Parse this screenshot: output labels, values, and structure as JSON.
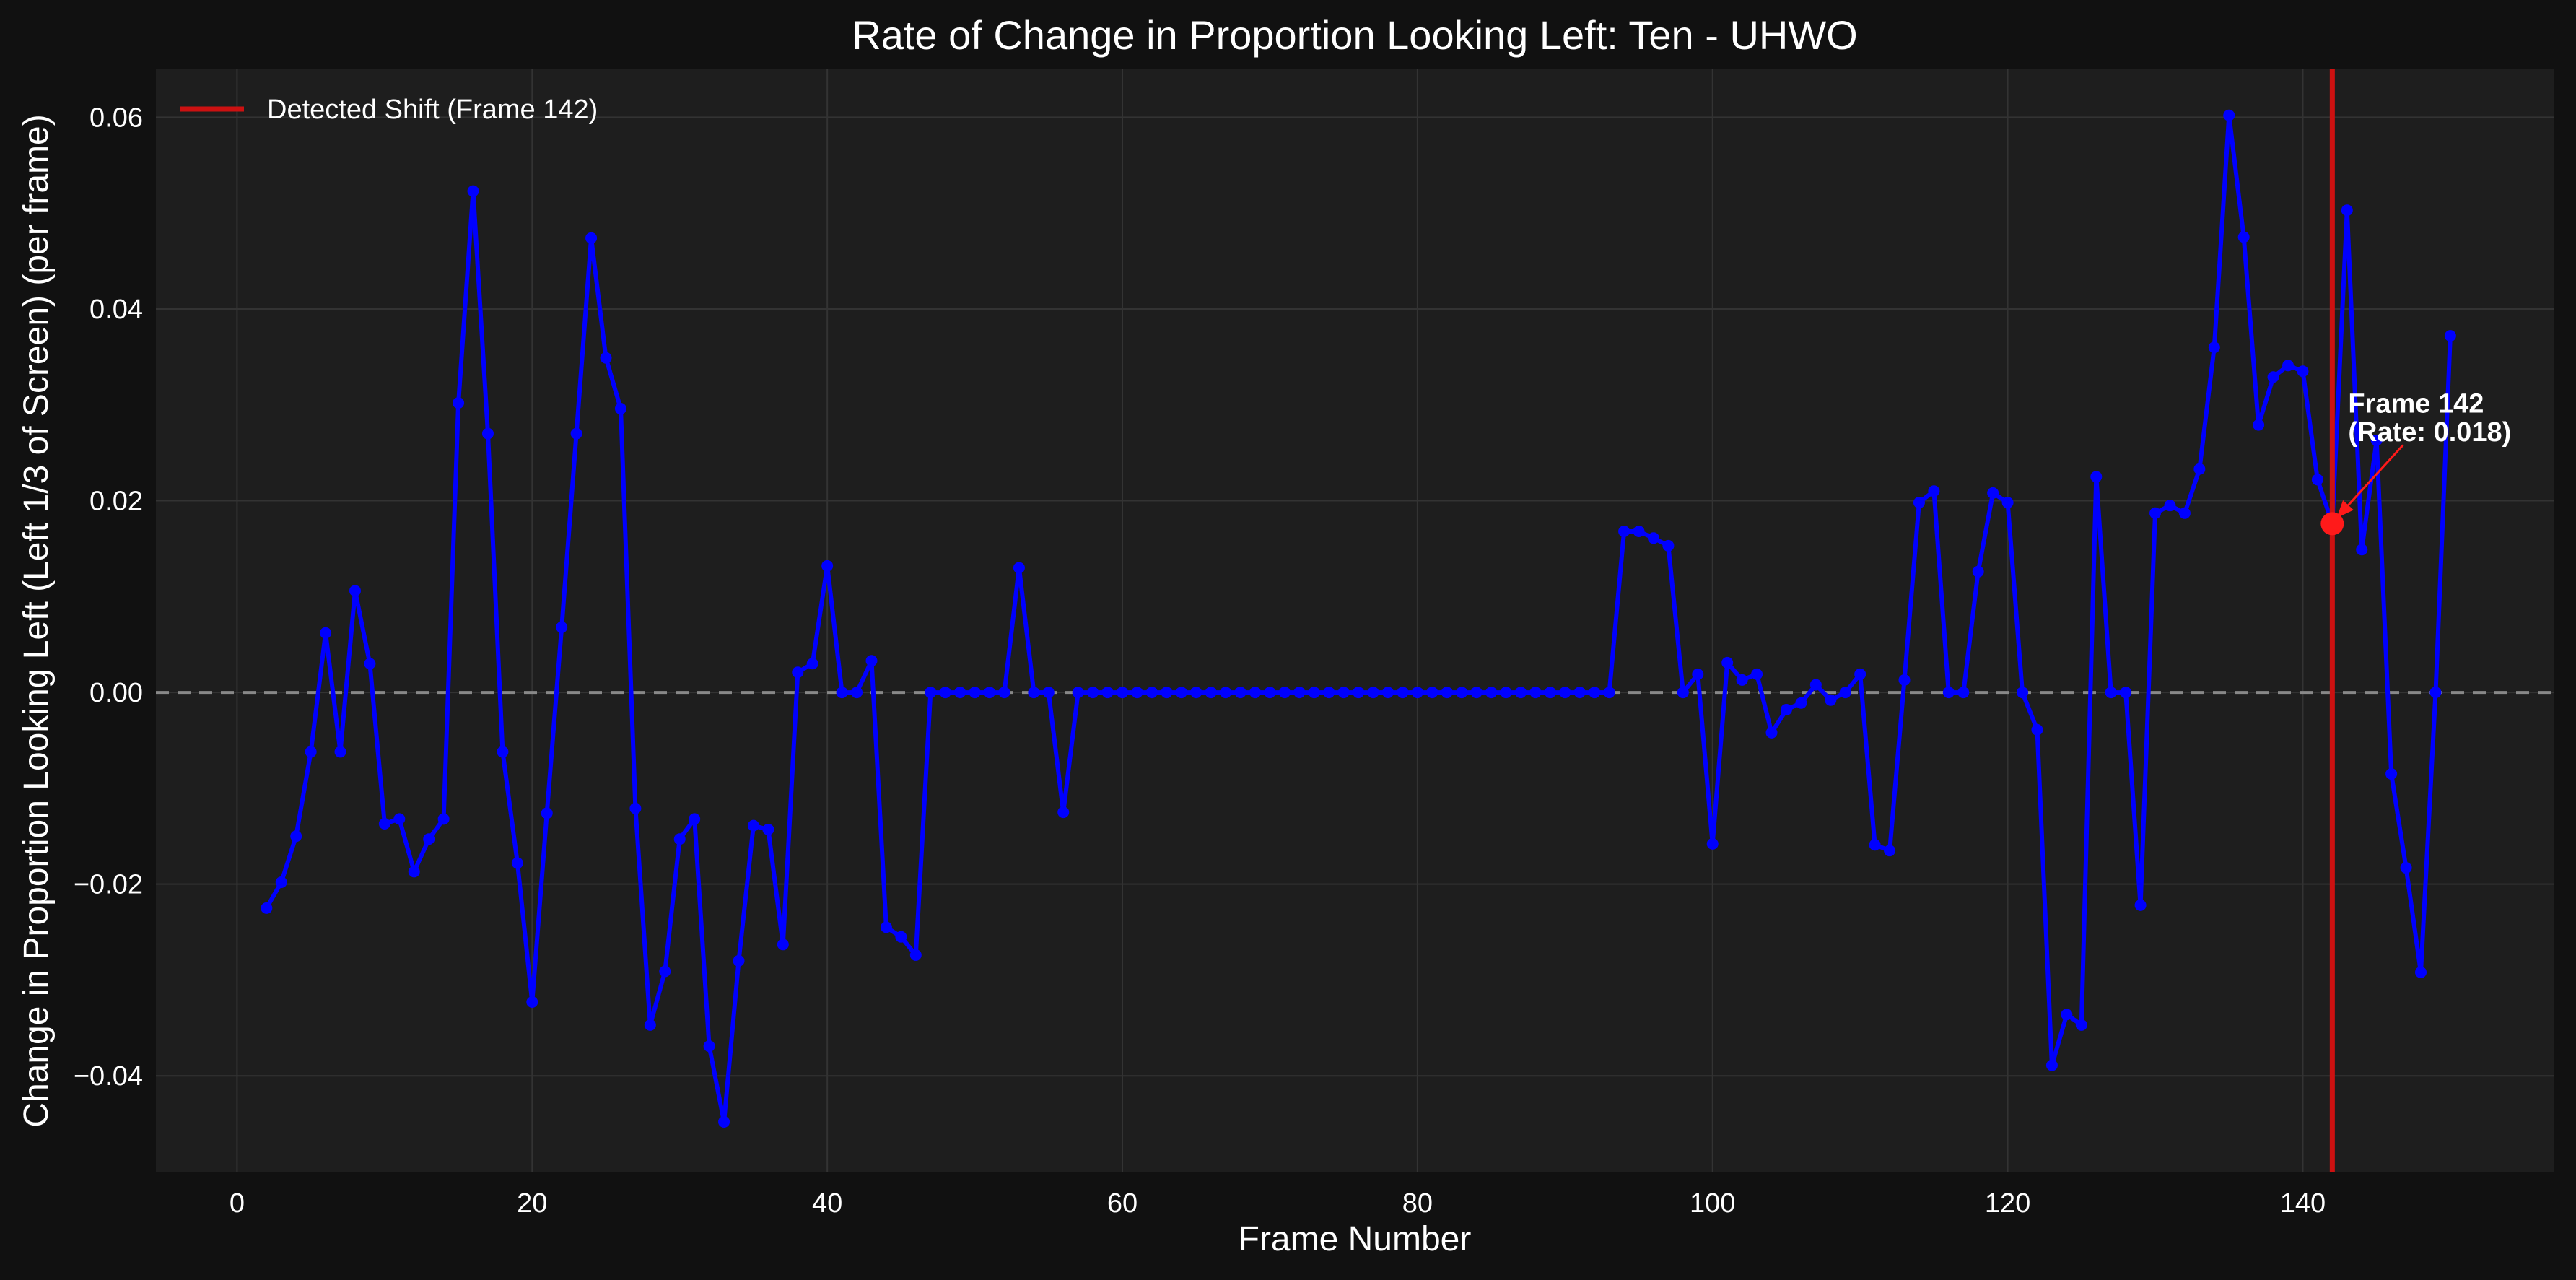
{
  "colors": {
    "background": "#111111",
    "plot_bg": "#1e1e1e",
    "series": "#0000ff",
    "shift_line": "#cc1111",
    "highlight": "#ff1a1a",
    "zero_line": "#888888",
    "text": "#ffffff",
    "grid": "#333333"
  },
  "chart_data": {
    "type": "line",
    "title": "Rate of Change in Proportion Looking Left: Ten - UHWO",
    "xlabel": "Frame Number",
    "ylabel": "Change in Proportion Looking Left (Left 1/3 of Screen) (per frame)",
    "xlim": [
      -5.5,
      157
    ],
    "ylim": [
      -0.05,
      0.065
    ],
    "xticks": [
      0,
      20,
      40,
      60,
      80,
      100,
      120,
      140
    ],
    "yticks": [
      -0.04,
      -0.02,
      0.0,
      0.02,
      0.04,
      0.06
    ],
    "xtick_labels": [
      "0",
      "20",
      "40",
      "60",
      "80",
      "100",
      "120",
      "140"
    ],
    "ytick_labels": [
      "−0.04",
      "−0.02",
      "0.00",
      "0.02",
      "0.04",
      "0.06"
    ],
    "grid": true,
    "legend_position": "top-left",
    "legend": [
      {
        "label": "Detected Shift (Frame 142)",
        "color": "#cc1111"
      }
    ],
    "zero_line": 0,
    "detected_shift": {
      "frame": 142,
      "rate": 0.0176
    },
    "annotation": {
      "line1": "Frame 142",
      "line2": "(Rate: 0.018)"
    },
    "series": [
      {
        "x": [
          2,
          3,
          4,
          5,
          6,
          7,
          8,
          9,
          10,
          11,
          12,
          13,
          14,
          15,
          16,
          17,
          18,
          19,
          20,
          21,
          22,
          23,
          24,
          25,
          26,
          27,
          28,
          29,
          30,
          31,
          32,
          33,
          34,
          35,
          36,
          37,
          38,
          39,
          40,
          41,
          42,
          43,
          44,
          45,
          46,
          47,
          48,
          49,
          50,
          51,
          52,
          53,
          54,
          55,
          56,
          57,
          58,
          59,
          60,
          61,
          62,
          63,
          64,
          65,
          66,
          67,
          68,
          69,
          70,
          71,
          72,
          73,
          74,
          75,
          76,
          77,
          78,
          79,
          80,
          81,
          82,
          83,
          84,
          85,
          86,
          87,
          88,
          89,
          90,
          91,
          92,
          93,
          94,
          95,
          96,
          97,
          98,
          99,
          100,
          101,
          102,
          103,
          104,
          105,
          106,
          107,
          108,
          109,
          110,
          111,
          112,
          113,
          114,
          115,
          116,
          117,
          118,
          119,
          120,
          121,
          122,
          123,
          124,
          125,
          126,
          127,
          128,
          129,
          130,
          131,
          132,
          133,
          134,
          135,
          136,
          137,
          138,
          139,
          140,
          141,
          142,
          143,
          144,
          145,
          146,
          147,
          148,
          149,
          150
        ],
        "y": [
          -0.0225,
          -0.0198,
          -0.015,
          -0.0062,
          0.0062,
          -0.0062,
          0.0106,
          0.003,
          -0.0137,
          -0.0132,
          -0.0187,
          -0.0153,
          -0.0132,
          0.0302,
          0.0523,
          0.027,
          -0.0062,
          -0.0178,
          -0.0323,
          -0.0126,
          0.0068,
          0.027,
          0.0474,
          0.0349,
          0.0296,
          -0.0121,
          -0.0347,
          -0.0291,
          -0.0153,
          -0.0132,
          -0.0369,
          -0.0448,
          -0.028,
          -0.0139,
          -0.0143,
          -0.0263,
          0.0021,
          0.003,
          0.0132,
          0.0,
          0.0,
          0.0033,
          -0.0245,
          -0.0255,
          -0.0274,
          0.0,
          0.0,
          0.0,
          0.0,
          0.0,
          0.0,
          0.013,
          0.0,
          0.0,
          -0.0125,
          0.0,
          0.0,
          0.0,
          0.0,
          0.0,
          0.0,
          0.0,
          0.0,
          0.0,
          0.0,
          0.0,
          0.0,
          0.0,
          0.0,
          0.0,
          0.0,
          0.0,
          0.0,
          0.0,
          0.0,
          0.0,
          0.0,
          0.0,
          0.0,
          0.0,
          0.0,
          0.0,
          0.0,
          0.0,
          0.0,
          0.0,
          0.0,
          0.0,
          0.0,
          0.0,
          0.0,
          0.0,
          0.0168,
          0.0168,
          0.0161,
          0.0153,
          0.0,
          0.0019,
          -0.0158,
          0.0031,
          0.0013,
          0.0019,
          -0.0042,
          -0.0018,
          -0.0011,
          0.0008,
          -0.0008,
          0.0,
          0.0019,
          -0.0159,
          -0.0165,
          0.0013,
          0.0198,
          0.021,
          0.0,
          0.0,
          0.0126,
          0.0208,
          0.0198,
          0.0,
          -0.0039,
          -0.0389,
          -0.0336,
          -0.0347,
          0.0225,
          0.0,
          0.0,
          -0.0222,
          0.0187,
          0.0195,
          0.0187,
          0.0233,
          0.036,
          0.0602,
          0.0475,
          0.0279,
          0.0329,
          0.0341,
          0.0335,
          0.0222,
          0.0176,
          0.0503,
          0.0149,
          0.0263,
          -0.0085,
          -0.0183,
          -0.0292,
          0.0,
          0.0372
        ]
      }
    ]
  }
}
